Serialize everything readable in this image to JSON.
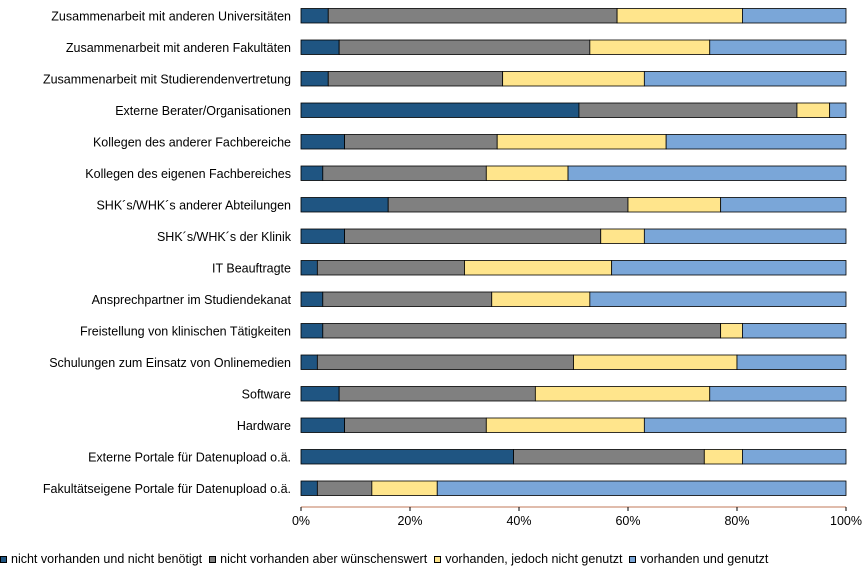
{
  "chart_data": {
    "type": "bar",
    "orientation": "horizontal",
    "stacked": "percent",
    "title": "",
    "xlabel": "",
    "ylabel": "",
    "xlim": [
      0,
      100
    ],
    "x_ticks": [
      "0%",
      "20%",
      "40%",
      "60%",
      "80%",
      "100%"
    ],
    "grid": false,
    "legend_position": "bottom",
    "categories": [
      "Zusammenarbeit mit anderen Universitäten",
      "Zusammenarbeit mit anderen Fakultäten",
      "Zusammenarbeit mit Studierendenvertretung",
      "Externe Berater/Organisationen",
      "Kollegen des anderer Fachbereiche",
      "Kollegen des eigenen Fachbereiches",
      "SHK´s/WHK´s anderer Abteilungen",
      "SHK´s/WHK´s der Klinik",
      "IT Beauftragte",
      "Ansprechpartner im Studiendekanat",
      "Freistellung von klinischen Tätigkeiten",
      "Schulungen zum Einsatz von Onlinemedien",
      "Software",
      "Hardware",
      "Externe Portale für Datenupload o.ä.",
      "Fakultätseigene Portale für Datenupload o.ä."
    ],
    "series": [
      {
        "name": "nicht vorhanden und nicht benötigt",
        "color": "#1f5582",
        "values": [
          5,
          7,
          5,
          51,
          8,
          4,
          16,
          8,
          3,
          4,
          4,
          3,
          7,
          8,
          39,
          3
        ]
      },
      {
        "name": "nicht vorhanden aber wünschenswert",
        "color": "#808080",
        "values": [
          53,
          46,
          32,
          40,
          28,
          30,
          44,
          47,
          27,
          31,
          73,
          47,
          36,
          26,
          35,
          10
        ]
      },
      {
        "name": "vorhanden, jedoch nicht genutzt",
        "color": "#ffe58c",
        "values": [
          23,
          22,
          26,
          6,
          31,
          15,
          17,
          8,
          27,
          18,
          4,
          30,
          32,
          29,
          7,
          12
        ]
      },
      {
        "name": "vorhanden und genutzt",
        "color": "#7aa6d8",
        "values": [
          19,
          25,
          37,
          3,
          33,
          51,
          23,
          37,
          43,
          47,
          19,
          20,
          25,
          37,
          19,
          75
        ]
      }
    ]
  }
}
